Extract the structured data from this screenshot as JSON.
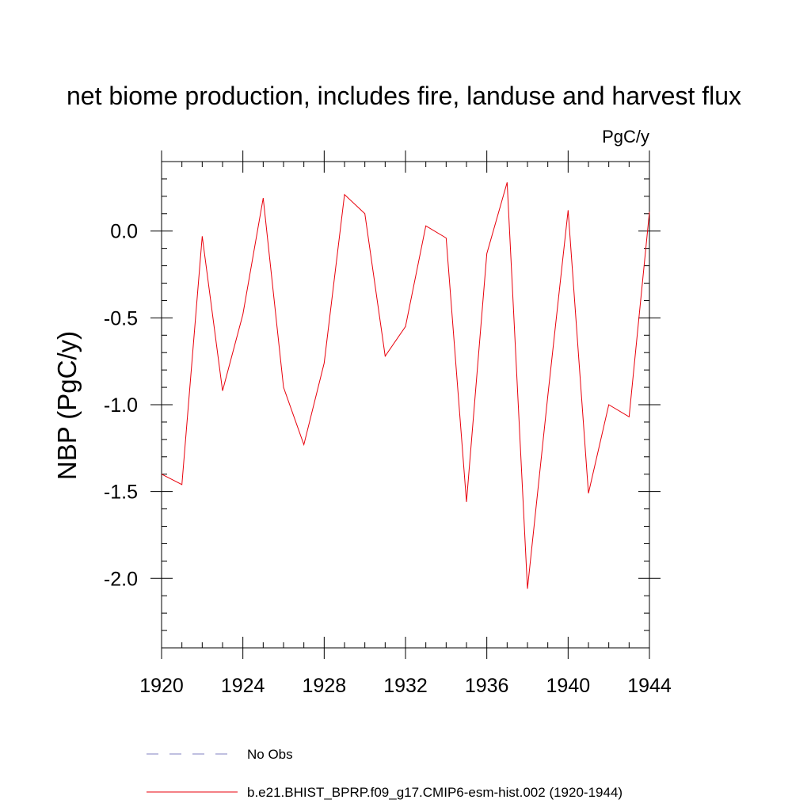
{
  "chart_data": {
    "type": "line",
    "title": "net biome production, includes fire, landuse and harvest flux",
    "units": "PgC/y",
    "xlabel": "",
    "ylabel": "NBP  (PgC/y)",
    "xlim": [
      1920,
      1944
    ],
    "ylim": [
      -2.4,
      0.4
    ],
    "x_ticks": [
      1920,
      1924,
      1928,
      1932,
      1936,
      1940,
      1944
    ],
    "y_ticks": [
      -2.0,
      -1.5,
      -1.0,
      -0.5,
      0.0
    ],
    "x_tick_labels": [
      "1920",
      "1924",
      "1928",
      "1932",
      "1936",
      "1940",
      "1944"
    ],
    "y_tick_labels": [
      "-2.0",
      "-1.5",
      "-1.0",
      "-0.5",
      "0.0"
    ],
    "x_minor_step": 1,
    "y_minor_step": 0.1,
    "grid": false,
    "legend_position": "bottom-center",
    "series": [
      {
        "name": "b.e21.BHIST_BPRP.f09_g17.CMIP6-esm-hist.002 (1920-1944)",
        "color": "#e8000b",
        "style": "solid",
        "x": [
          1920,
          1921,
          1922,
          1923,
          1924,
          1925,
          1926,
          1927,
          1928,
          1929,
          1930,
          1931,
          1932,
          1933,
          1934,
          1935,
          1936,
          1937,
          1938,
          1939,
          1940,
          1941,
          1942,
          1943,
          1944
        ],
        "y": [
          -1.4,
          -1.46,
          -0.03,
          -0.92,
          -0.48,
          0.19,
          -0.9,
          -1.23,
          -0.76,
          0.21,
          0.1,
          -0.72,
          -0.55,
          0.03,
          -0.04,
          -1.56,
          -0.13,
          0.28,
          -2.06,
          -0.95,
          0.12,
          -1.51,
          -1.0,
          -1.07,
          0.11
        ]
      }
    ],
    "legend": [
      {
        "label": "No Obs",
        "color": "#8080c0",
        "style": "dashed"
      },
      {
        "label": "b.e21.BHIST_BPRP.f09_g17.CMIP6-esm-hist.002 (1920-1944)",
        "color": "#e8000b",
        "style": "solid"
      }
    ]
  }
}
